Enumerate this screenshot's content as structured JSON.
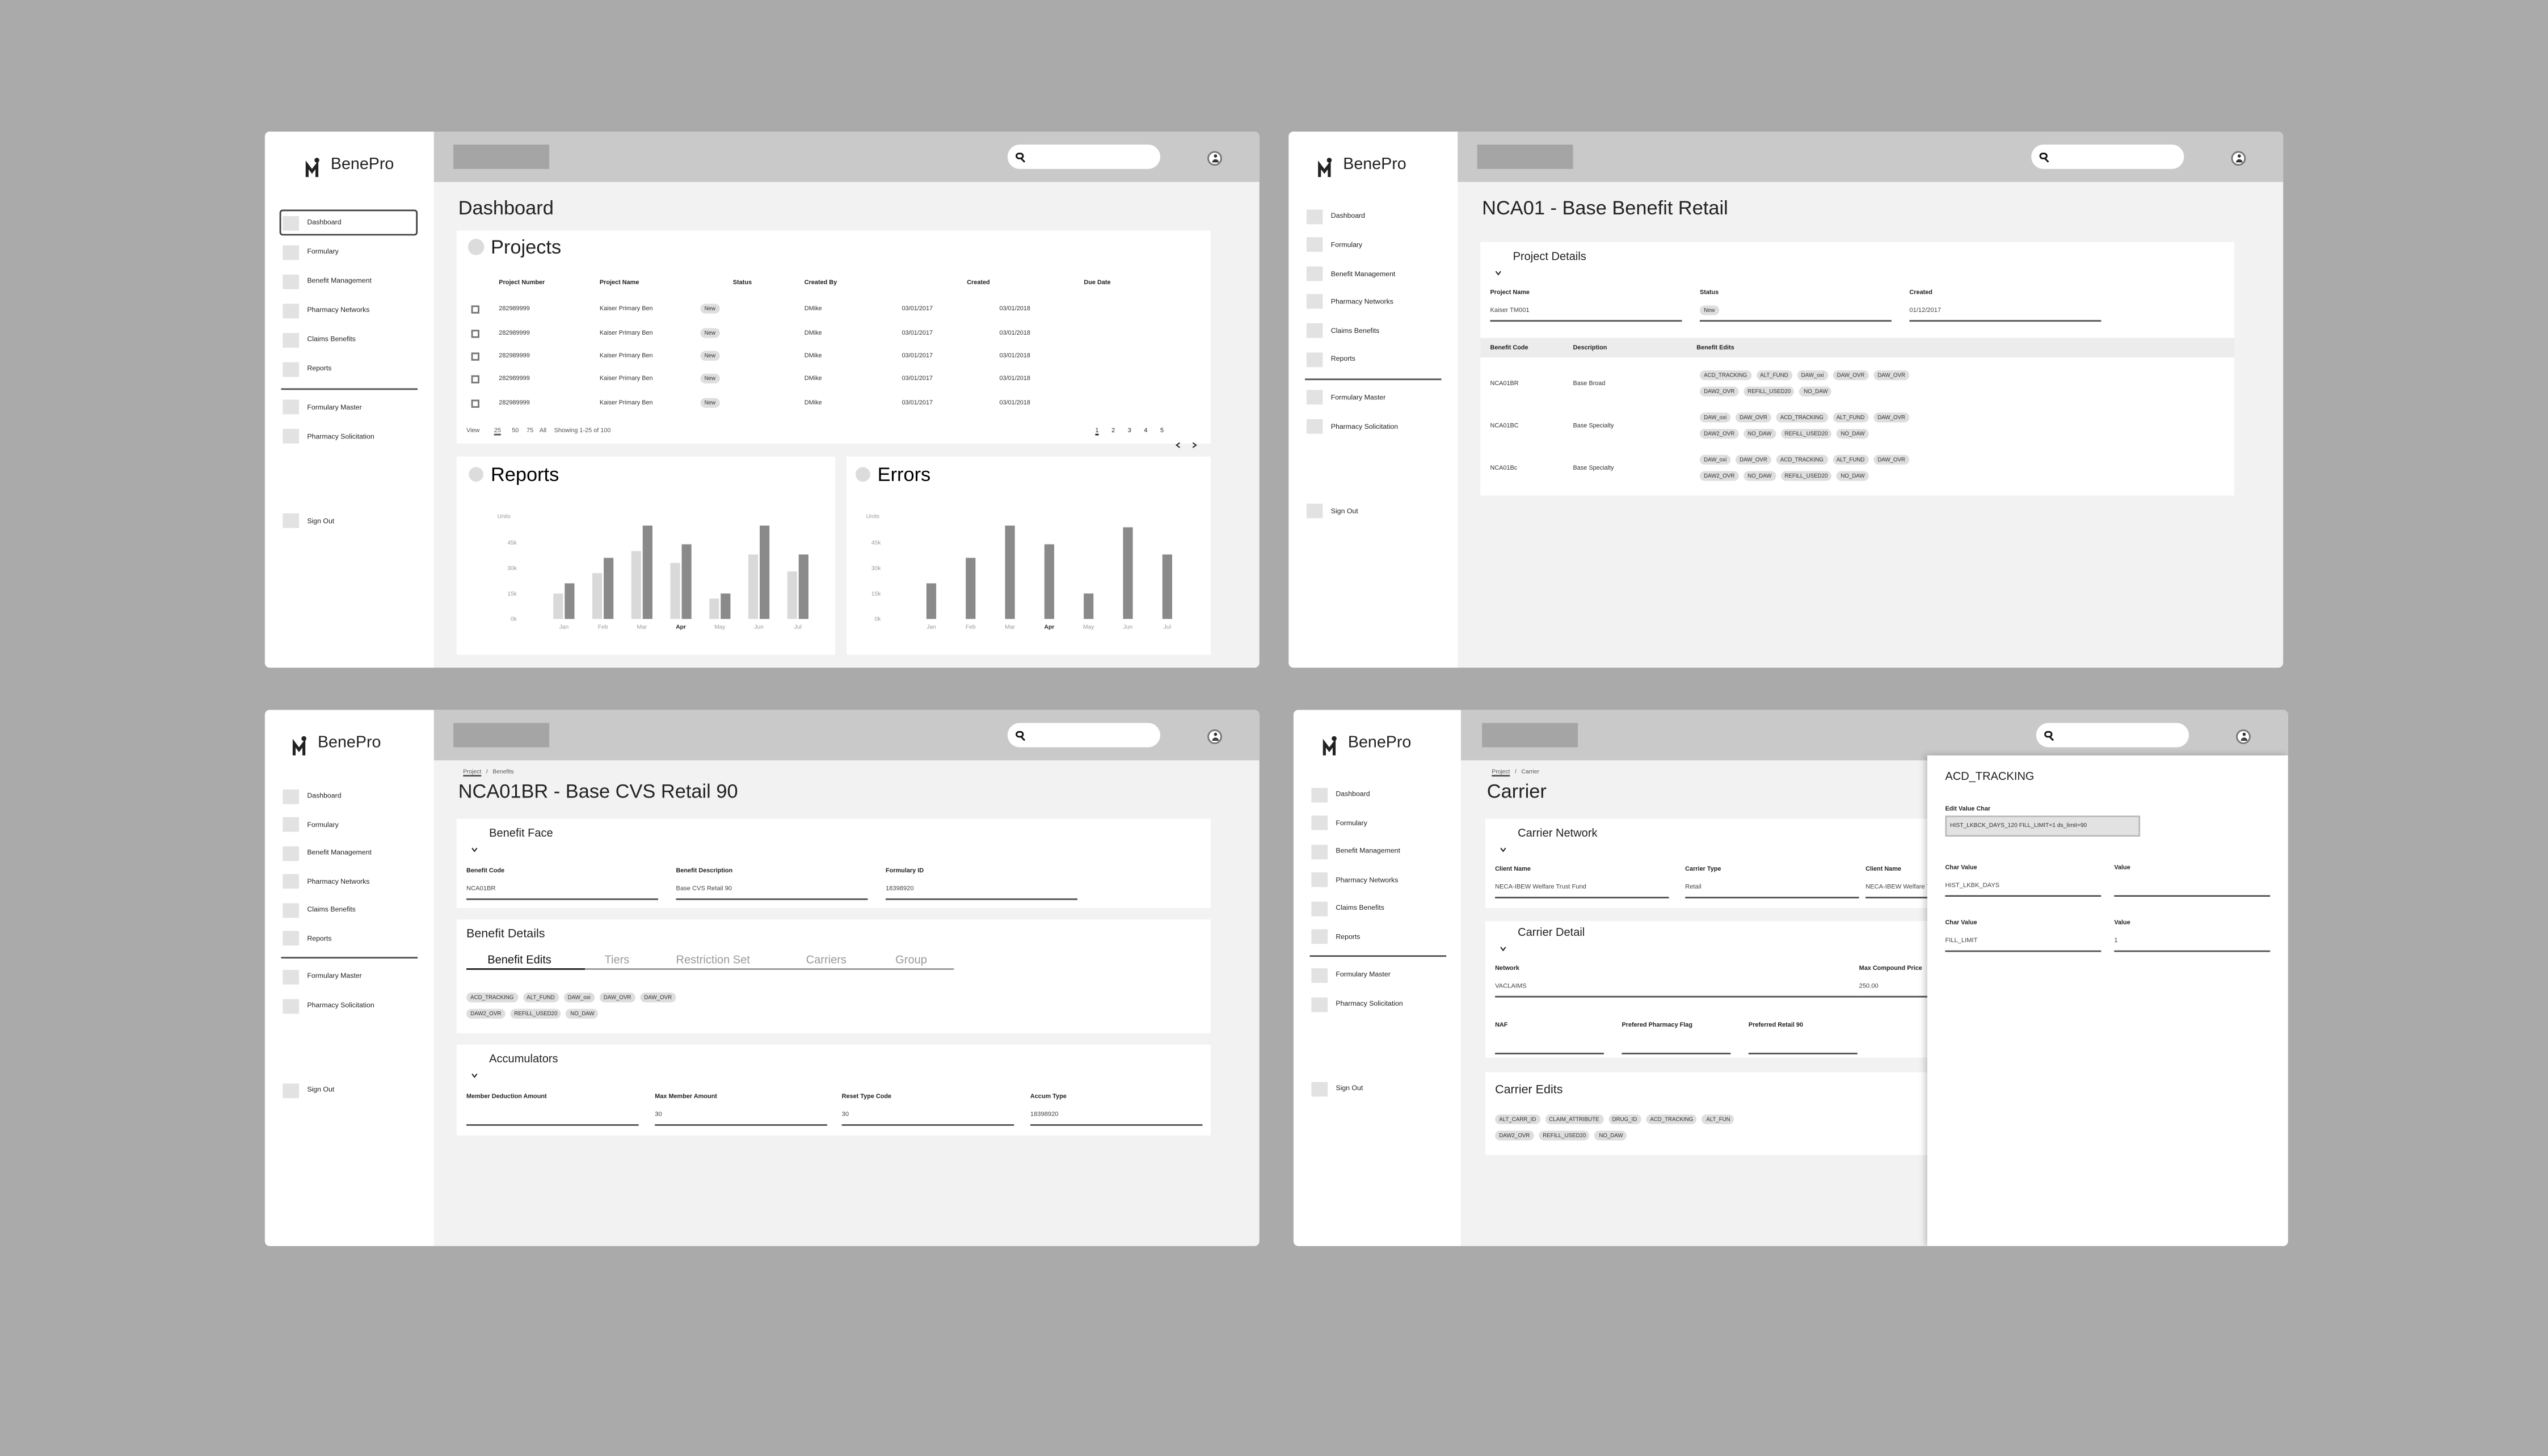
{
  "sidebar": {
    "brand": "BenePro",
    "nav": [
      "Dashboard",
      "Formulary",
      "Benefit Management",
      "Pharmacy Networks",
      "Claims Benefits",
      "Reports"
    ],
    "secondary": [
      "Formulary Master",
      "Pharmacy Solicitation"
    ],
    "sign_out": "Sign Out"
  },
  "dashboard": {
    "title": "Dashboard",
    "projects": {
      "title": "Projects",
      "columns": [
        "Project  Number",
        "Project Name",
        "Status",
        "Created By",
        "Created",
        "Due Date"
      ],
      "rows": [
        [
          "282989999",
          "Kaiser Primary Ben",
          "New",
          "DMike",
          "03/01/2017",
          "03/01/2018"
        ],
        [
          "282989999",
          "Kaiser Primary Ben",
          "New",
          "DMike",
          "03/01/2017",
          "03/01/2018"
        ],
        [
          "282989999",
          "Kaiser Primary Ben",
          "New",
          "DMike",
          "03/01/2017",
          "03/01/2018"
        ],
        [
          "282989999",
          "Kaiser Primary Ben",
          "New",
          "DMike",
          "03/01/2017",
          "03/01/2018"
        ],
        [
          "282989999",
          "Kaiser Primary Ben",
          "New",
          "DMike",
          "03/01/2017",
          "03/01/2018"
        ]
      ],
      "view_label": "View",
      "page_sizes": [
        "25",
        "50",
        "75",
        "All"
      ],
      "showing": "Showing 1-25 of 100",
      "pages": [
        "1",
        "2",
        "3",
        "4",
        "5"
      ]
    }
  },
  "chart_data": [
    {
      "type": "bar",
      "title": "Reports",
      "y_label": "Units",
      "categories": [
        "Jan",
        "Feb",
        "Mar",
        "Apr",
        "May",
        "Jun",
        "Jul"
      ],
      "highlight": "Apr",
      "ylim": [
        0,
        60
      ],
      "yticks": [
        {
          "value": 0,
          "label": "0k"
        },
        {
          "value": 15,
          "label": "15k"
        },
        {
          "value": 30,
          "label": "30k"
        },
        {
          "value": 45,
          "label": "45k"
        }
      ],
      "series": [
        {
          "color": "#d9d9d9",
          "values": [
            15,
            27,
            40,
            33,
            12,
            38,
            28
          ]
        },
        {
          "color": "#8a8a8a",
          "values": [
            21,
            36,
            55,
            44,
            15,
            55,
            38
          ]
        }
      ]
    },
    {
      "type": "bar",
      "title": "Errors",
      "y_label": "Units",
      "categories": [
        "Jan",
        "Feb",
        "Mar",
        "Apr",
        "May",
        "Jun",
        "Jul"
      ],
      "highlight": "Apr",
      "ylim": [
        0,
        60
      ],
      "yticks": [
        {
          "value": 0,
          "label": "0k"
        },
        {
          "value": 15,
          "label": "15k"
        },
        {
          "value": 30,
          "label": "30k"
        },
        {
          "value": 45,
          "label": "45k"
        }
      ],
      "series": [
        {
          "color": "#8a8a8a",
          "values": [
            21,
            36,
            55,
            44,
            15,
            54,
            38
          ]
        }
      ]
    }
  ],
  "project_page": {
    "title": "NCA01 - Base Benefit Retail",
    "details": {
      "title": "Project Details",
      "project_name": {
        "label": "Project Name",
        "value": "Kaiser TM001"
      },
      "status": {
        "label": "Status",
        "value": "New"
      },
      "created": {
        "label": "Created",
        "value": "01/12/2017"
      },
      "columns": [
        "Benefit Code",
        "Description",
        "Benefit Edits"
      ],
      "rows": [
        {
          "code": "NCA01BR",
          "description": "Base Broad",
          "edits": [
            [
              "ACD_TRACKING",
              "ALT_FUND",
              "DAW_oxi",
              "DAW_OVR",
              "DAW_OVR"
            ],
            [
              "DAW2_OVR",
              "REFILL_USED20",
              "NO_DAW"
            ]
          ]
        },
        {
          "code": "NCA01BC",
          "description": "Base Specialty",
          "edits": [
            [
              "DAW_oxi",
              "DAW_OVR",
              "ACD_TRACKING",
              "ALT_FUND",
              "DAW_OVR"
            ],
            [
              "DAW2_OVR",
              "NO_DAW",
              "REFILL_USED20",
              "NO_DAW"
            ]
          ]
        },
        {
          "code": "NCA01Bc",
          "description": "Base Specialty",
          "edits": [
            [
              "DAW_oxi",
              "DAW_OVR",
              "ACD_TRACKING",
              "ALT_FUND",
              "DAW_OVR"
            ],
            [
              "DAW2_OVR",
              "NO_DAW",
              "REFILL_USED20",
              "NO_DAW"
            ]
          ]
        }
      ]
    }
  },
  "benefit_page": {
    "breadcrumb": {
      "items": [
        "Project",
        "Benefits"
      ],
      "separator": "/"
    },
    "title": "NCA01BR - Base CVS Retail 90",
    "face": {
      "title": "Benefit Face",
      "fields": [
        {
          "label": "Benefit Code",
          "value": "NCA01BR"
        },
        {
          "label": "Benefit Description",
          "value": "Base CVS Retail 90"
        },
        {
          "label": "Formulary ID",
          "value": "18398920"
        }
      ]
    },
    "details": {
      "title": "Benefit Details",
      "tabs": [
        "Benefit Edits",
        "Tiers",
        "Restriction Set",
        "Carriers",
        "Group"
      ],
      "edits": [
        [
          "ACD_TRACKING",
          "ALT_FUND",
          "DAW_oxi",
          "DAW_OVR",
          "DAW_OVR"
        ],
        [
          "DAW2_OVR",
          "REFILL_USED20",
          "NO_DAW"
        ]
      ]
    },
    "accumulators": {
      "title": "Accumulators",
      "fields": [
        {
          "label": "Member Deduction Amount"
        },
        {
          "label": "Max Member Amount",
          "value": "30"
        },
        {
          "label": "Reset Type Code",
          "value": "30"
        },
        {
          "label": "Accum Type",
          "value": "18398920"
        }
      ]
    }
  },
  "carrier_page": {
    "breadcrumb": {
      "items": [
        "Project",
        "Carrier"
      ],
      "separator": "/"
    },
    "title": "Carrier",
    "network": {
      "title": "Carrier Network",
      "fields": [
        {
          "label": "Client Name",
          "value": "NECA-IBEW Welfare Trust Fund"
        },
        {
          "label": "Carrier Type",
          "value": "Retail"
        },
        {
          "label": "Client Name",
          "value": "NECA-IBEW Welfare Trust Fund"
        }
      ]
    },
    "detail": {
      "title": "Carrier Detail",
      "fields": [
        {
          "label": "Network",
          "value": "VACLAIMS"
        },
        {
          "label": "Max Compound Price",
          "value": "250.00"
        },
        {
          "label": "NAF"
        },
        {
          "label": "Prefered Pharmacy Flag"
        },
        {
          "label": "Preferred Retail 90"
        }
      ]
    },
    "edits": {
      "title": "Carrier Edits",
      "chips": [
        [
          "ALT_CARR_ID",
          "CLAIM_ATTRIBUTE",
          "DRUG_ID",
          "ACD_TRACKING",
          "ALT_FUN"
        ],
        [
          "DAW2_OVR",
          "REFILL_USED20",
          "NO_DAW"
        ]
      ]
    },
    "edit_panel": {
      "title": "ACD_TRACKING",
      "input_label": "Edit Value Char",
      "input_value": "HIST_LKBCK_DAYS_120 FILL_LIMIT=1 ds_limit=90",
      "rows": [
        [
          {
            "label": "Char Value",
            "value": "HIST_LKBK_DAYS"
          },
          {
            "label": "Value"
          }
        ],
        [
          {
            "label": "Char Value",
            "value": "FILL_LIMIT"
          },
          {
            "label": "Value",
            "value": "1"
          }
        ]
      ]
    }
  }
}
